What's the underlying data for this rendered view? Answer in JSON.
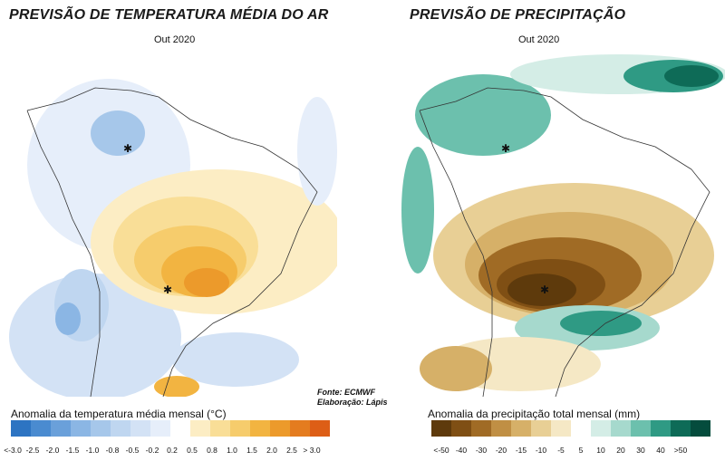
{
  "left_panel": {
    "title": "PREVISÃO DE TEMPERATURA MÉDIA DO AR",
    "subtitle": "Out 2020",
    "credit_source": "Fonte: ECMWF",
    "credit_author": "Elaboração: Lápis",
    "legend_title": "Anomalia da temperatura média mensal (°C)",
    "legend_labels": [
      "<-3.0",
      "-2.5",
      "-2.0",
      "-1.5",
      "-1.0",
      "-0.8",
      "-0.5",
      "-0.2",
      "0.2",
      "0.5",
      "0.8",
      "1.0",
      "1.5",
      "2.0",
      "2.5",
      "> 3.0"
    ],
    "legend_colors": [
      "#2d74c2",
      "#4a8bd0",
      "#6aa0da",
      "#8bb6e4",
      "#a6c7ea",
      "#bfd6f0",
      "#d3e2f5",
      "#e6eefa",
      "#ffffff",
      "#fcedc4",
      "#f9de97",
      "#f6cc6c",
      "#f2b441",
      "#ec9a2b",
      "#e47c1f",
      "#dd5e16"
    ]
  },
  "right_panel": {
    "title": "PREVISÃO DE PRECIPITAÇÃO",
    "subtitle": "Out 2020",
    "legend_title": "Anomalia da precipitação total mensal (mm)",
    "legend_labels": [
      "<-50",
      "-40",
      "-30",
      "-20",
      "-15",
      "-10",
      "-5",
      "5",
      "10",
      "20",
      "30",
      "40",
      ">50"
    ],
    "legend_colors": [
      "#5e3a0c",
      "#7f4f14",
      "#a06b25",
      "#c08f44",
      "#d6b068",
      "#e8cf95",
      "#f5e8c5",
      "#ffffff",
      "#d4ede6",
      "#a6d9cd",
      "#6cc0ad",
      "#2f9a84",
      "#0e6b57",
      "#054c3d"
    ]
  }
}
